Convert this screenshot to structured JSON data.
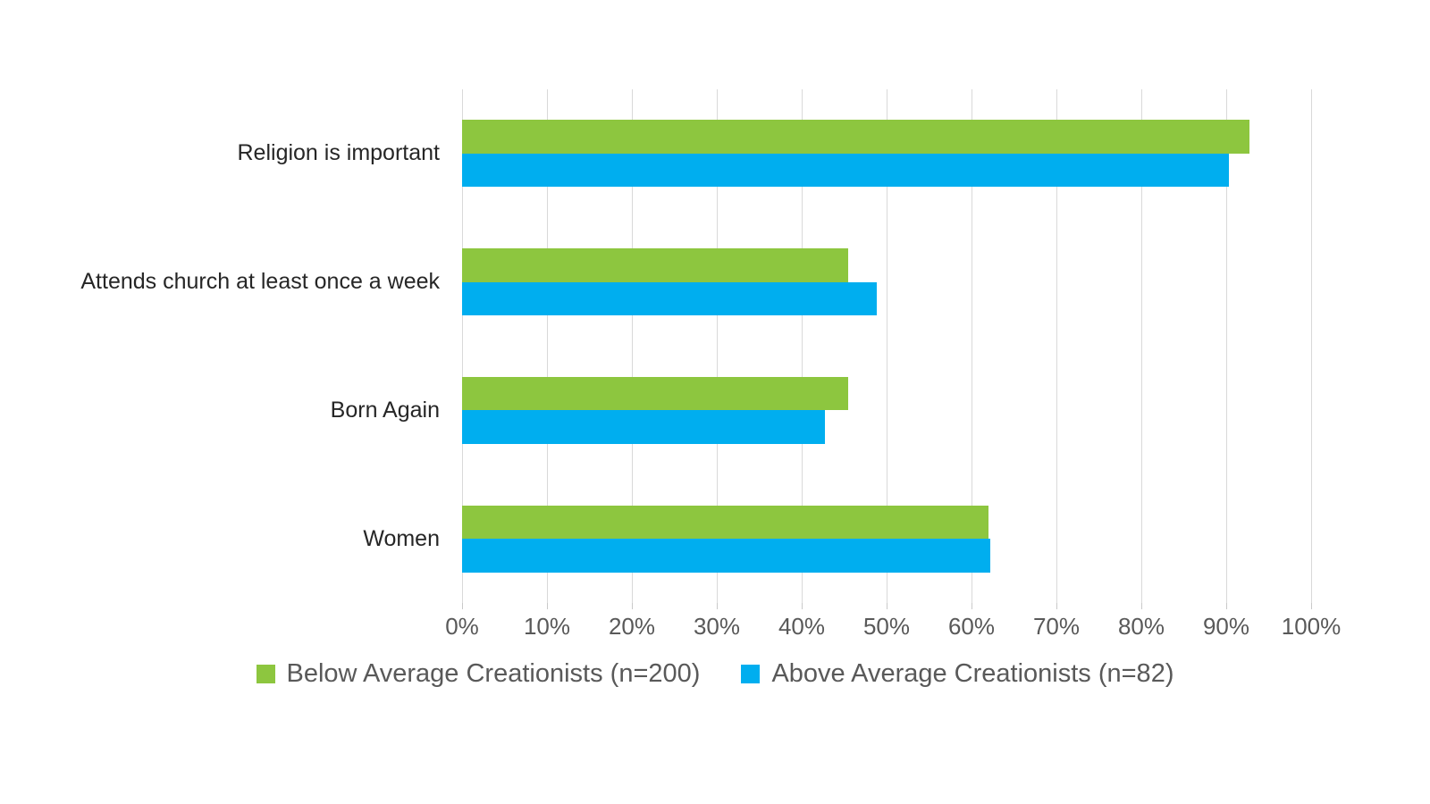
{
  "chart_data": {
    "type": "bar",
    "orientation": "horizontal",
    "title": "",
    "xlabel": "",
    "ylabel": "",
    "categories": [
      "Religion is important",
      "Attends church at least once a week",
      "Born Again",
      "Women"
    ],
    "series": [
      {
        "name": "Below Average Creationists (n=200)",
        "color": "#8dc63f",
        "values": [
          92.7,
          45.5,
          45.5,
          62.0
        ]
      },
      {
        "name": "Above Average Creationists (n=82)",
        "color": "#00aeef",
        "values": [
          90.3,
          48.8,
          42.7,
          62.2
        ]
      }
    ],
    "xlim": [
      0,
      100
    ],
    "x_tick_step": 10,
    "x_tick_labels": [
      "0%",
      "10%",
      "20%",
      "30%",
      "40%",
      "50%",
      "60%",
      "70%",
      "80%",
      "90%",
      "100%"
    ],
    "grid": "vertical-only",
    "legend_position": "bottom-center",
    "colors": {
      "background": "#ffffff",
      "gridline": "#d9d9d9",
      "tick_mark": "#c9c9c9",
      "axis_label": "#595959",
      "category_label": "#262626",
      "legend_text": "#595959"
    }
  }
}
